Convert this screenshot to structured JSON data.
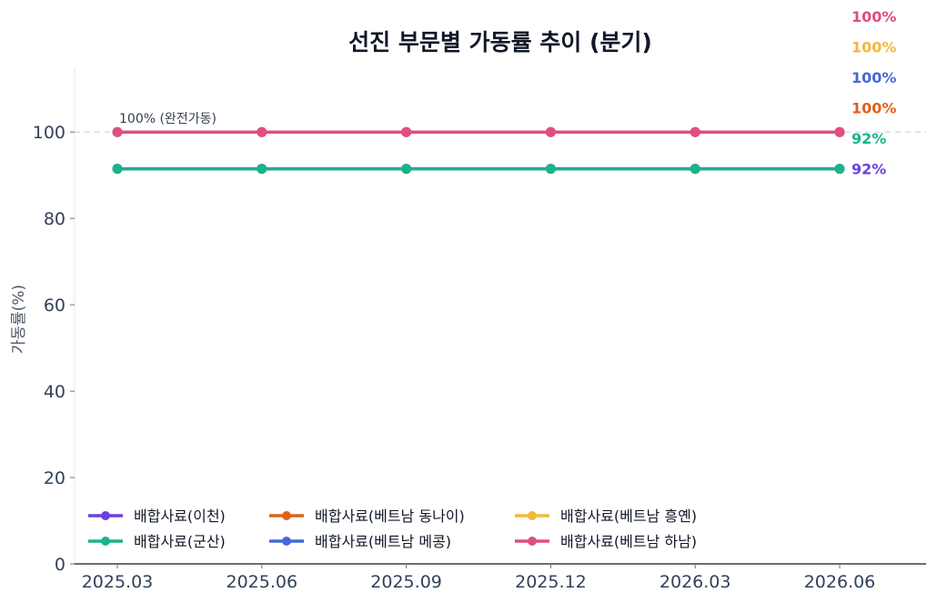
{
  "chart_data": {
    "type": "line",
    "title": "선진 부문별 가동률 추이 (분기)",
    "ylabel": "가동률(%)",
    "xlabel": "",
    "categories": [
      "2025.03",
      "2025.06",
      "2025.09",
      "2025.12",
      "2026.03",
      "2026.06"
    ],
    "ylim": [
      0,
      115
    ],
    "yticks": [
      0,
      20,
      40,
      60,
      80,
      100
    ],
    "reference_line": {
      "value": 100,
      "label": "100% (완전가동)",
      "style": "dashed"
    },
    "grid": false,
    "legend_position": "bottom-left",
    "series": [
      {
        "name": "배합사료(이천)",
        "color": "#6d3fdf",
        "values": [
          91.5,
          91.5,
          91.5,
          91.5,
          91.5,
          91.5
        ],
        "end_label": "92%"
      },
      {
        "name": "배합사료(군산)",
        "color": "#1ab38a",
        "values": [
          91.5,
          91.5,
          91.5,
          91.5,
          91.5,
          91.5
        ],
        "end_label": "92%"
      },
      {
        "name": "배합사료(베트남 동나이)",
        "color": "#e0601a",
        "values": [
          100,
          100,
          100,
          100,
          100,
          100
        ],
        "end_label": "100%"
      },
      {
        "name": "배합사료(베트남 메콩)",
        "color": "#4468d9",
        "values": [
          100,
          100,
          100,
          100,
          100,
          100
        ],
        "end_label": "100%"
      },
      {
        "name": "배합사료(베트남 흥옌)",
        "color": "#f0b83c",
        "values": [
          100,
          100,
          100,
          100,
          100,
          100
        ],
        "end_label": "100%"
      },
      {
        "name": "배합사료(베트남 하남)",
        "color": "#de4f7d",
        "values": [
          100,
          100,
          100,
          100,
          100,
          100
        ],
        "end_label": "100%"
      }
    ]
  }
}
